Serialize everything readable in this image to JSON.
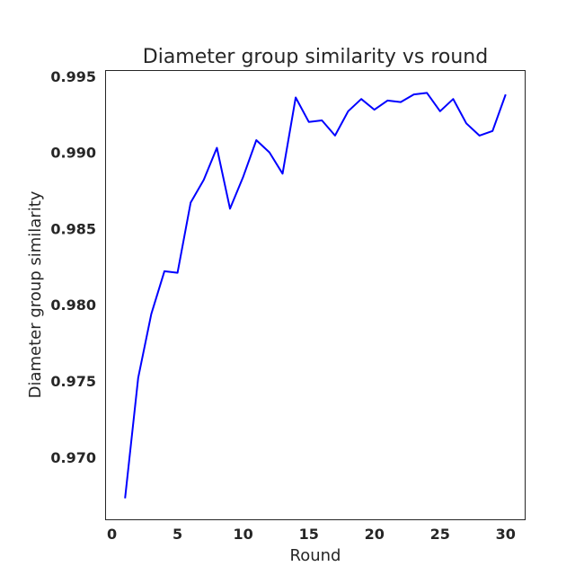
{
  "chart_data": {
    "type": "line",
    "title": "Diameter group similarity vs round",
    "xlabel": "Round",
    "ylabel": "Diameter group similarity",
    "xlim": [
      -0.45,
      31.45
    ],
    "ylim": [
      0.96592,
      0.99534
    ],
    "xticks": [
      0,
      5,
      10,
      15,
      20,
      25,
      30
    ],
    "xtick_labels": [
      "0",
      "5",
      "10",
      "15",
      "20",
      "25",
      "30"
    ],
    "yticks": [
      0.97,
      0.975,
      0.98,
      0.985,
      0.99,
      0.995
    ],
    "ytick_labels": [
      "0.970",
      "0.975",
      "0.980",
      "0.985",
      "0.990",
      "0.995"
    ],
    "grid": false,
    "series": [
      {
        "color": "#0000ff",
        "x": [
          1,
          2,
          3,
          4,
          5,
          6,
          7,
          8,
          9,
          10,
          11,
          12,
          13,
          14,
          15,
          16,
          17,
          18,
          19,
          20,
          21,
          22,
          23,
          24,
          25,
          26,
          27,
          28,
          29,
          30
        ],
        "y": [
          0.9673,
          0.9752,
          0.9794,
          0.9822,
          0.9821,
          0.9867,
          0.9882,
          0.9903,
          0.9863,
          0.9884,
          0.9908,
          0.99,
          0.9886,
          0.9936,
          0.992,
          0.9921,
          0.9911,
          0.9927,
          0.9935,
          0.9928,
          0.9934,
          0.9933,
          0.9938,
          0.9939,
          0.9927,
          0.9935,
          0.9919,
          0.9911,
          0.9914,
          0.9938
        ]
      }
    ]
  }
}
